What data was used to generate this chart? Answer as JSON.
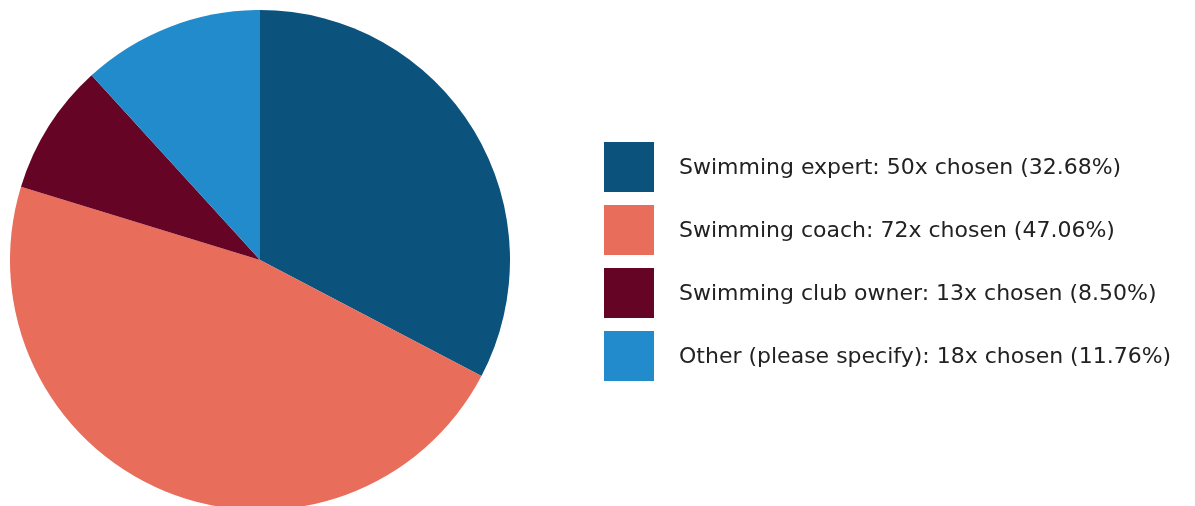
{
  "chart_data": {
    "type": "pie",
    "categories": [
      "Swimming expert: 50x chosen (32.68%)",
      "Swimming coach: 72x chosen (47.06%)",
      "Swimming club owner: 13x chosen (8.50%)",
      "Other (please specify): 18x chosen (11.76%)"
    ],
    "values": [
      50,
      72,
      13,
      18
    ],
    "colors": [
      "#0b527c",
      "#e86d5b",
      "#650425",
      "#228bcc"
    ],
    "legend": "right"
  }
}
